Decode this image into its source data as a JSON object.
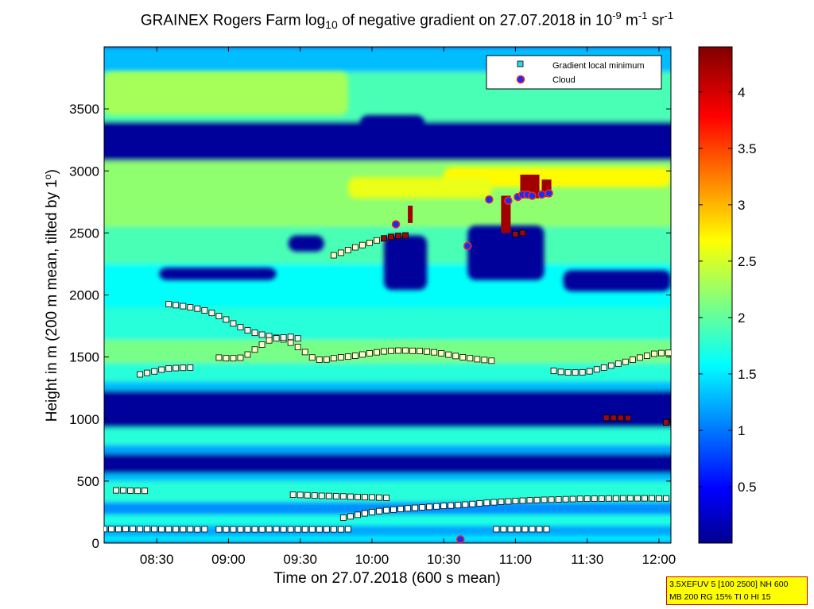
{
  "title": {
    "prefix": "GRAINEX Rogers Farm log",
    "sub": "10",
    "mid": " of negative gradient on 27.07.2018 in 10",
    "sup1": "-9",
    "mid2": " m",
    "sup2": "-1",
    "mid3": " sr",
    "sup3": "-1"
  },
  "xlabel": "Time on 27.07.2018 (600 s mean)",
  "ylabel": {
    "main": "Height in m (200 m mean, tilted by 1",
    "sup": "o",
    "end": ")"
  },
  "info_box": {
    "line1": "3.5XEFUV 5 [100 2500] NH 600",
    "line2": "MB 200 RG 15% TI 0 HI 15"
  },
  "legend": [
    {
      "label": "Gradient local minimum",
      "marker": "square",
      "color": "#29d6e8"
    },
    {
      "label": "Cloud",
      "marker": "circle",
      "color": "#1030ff",
      "edge": "#ff2020"
    }
  ],
  "chart_data": {
    "type": "heatmap",
    "x_unit": "minutes since 00:00",
    "xlim": [
      488,
      725
    ],
    "ylim": [
      0,
      4000
    ],
    "xticks": [
      {
        "value": 510,
        "label": "08:30"
      },
      {
        "value": 540,
        "label": "09:00"
      },
      {
        "value": 570,
        "label": "09:30"
      },
      {
        "value": 600,
        "label": "10:00"
      },
      {
        "value": 630,
        "label": "10:30"
      },
      {
        "value": 660,
        "label": "11:00"
      },
      {
        "value": 690,
        "label": "11:30"
      },
      {
        "value": 720,
        "label": "12:00"
      }
    ],
    "yticks": [
      0,
      500,
      1000,
      1500,
      2000,
      2500,
      3000,
      3500
    ],
    "colorbar": {
      "range": [
        0,
        4.4
      ],
      "ticks": [
        0.5,
        1,
        1.5,
        2,
        2.5,
        3,
        3.5,
        4
      ],
      "colormap": "jet"
    },
    "bands": [
      {
        "y0": 0,
        "y1": 60,
        "value": 1.5
      },
      {
        "y0": 60,
        "y1": 140,
        "value": 1.2
      },
      {
        "y0": 140,
        "y1": 230,
        "value": 1.7
      },
      {
        "y0": 230,
        "y1": 330,
        "value": 1.1
      },
      {
        "y0": 330,
        "y1": 500,
        "value": 1.75
      },
      {
        "y0": 500,
        "y1": 560,
        "value": 1.3
      },
      {
        "y0": 560,
        "y1": 720,
        "value": 0.05
      },
      {
        "y0": 720,
        "y1": 790,
        "value": 1.2
      },
      {
        "y0": 790,
        "y1": 930,
        "value": 1.75
      },
      {
        "y0": 930,
        "y1": 1230,
        "value": 0.05
      },
      {
        "y0": 1230,
        "y1": 1300,
        "value": 1.3
      },
      {
        "y0": 1300,
        "y1": 1450,
        "value": 1.75
      },
      {
        "y0": 1450,
        "y1": 1640,
        "value": 2.1
      },
      {
        "y0": 1640,
        "y1": 1900,
        "value": 1.75
      },
      {
        "y0": 1900,
        "y1": 2250,
        "value": 1.6
      },
      {
        "y0": 2250,
        "y1": 2550,
        "value": 1.9
      },
      {
        "y0": 2550,
        "y1": 2800,
        "value": 2.2
      },
      {
        "y0": 2800,
        "y1": 3080,
        "value": 2.2
      },
      {
        "y0": 3080,
        "y1": 3400,
        "value": 0.05
      },
      {
        "y0": 3400,
        "y1": 3800,
        "value": 1.9
      },
      {
        "y0": 3800,
        "y1": 4000,
        "value": 1.3
      }
    ],
    "patches": [
      {
        "x0": 630,
        "x1": 725,
        "y0": 2870,
        "y1": 3030,
        "value": 2.7
      },
      {
        "x0": 590,
        "x1": 650,
        "y0": 2780,
        "y1": 2950,
        "value": 2.6
      },
      {
        "x0": 488,
        "x1": 590,
        "y0": 3450,
        "y1": 3800,
        "value": 2.3
      },
      {
        "x0": 511,
        "x1": 560,
        "y0": 2120,
        "y1": 2220,
        "value": 0.05
      },
      {
        "x0": 565,
        "x1": 580,
        "y0": 2350,
        "y1": 2480,
        "value": 0.05
      },
      {
        "x0": 605,
        "x1": 623,
        "y0": 2040,
        "y1": 2480,
        "value": 0.05
      },
      {
        "x0": 640,
        "x1": 672,
        "y0": 2120,
        "y1": 2560,
        "value": 0.05
      },
      {
        "x0": 680,
        "x1": 725,
        "y0": 2030,
        "y1": 2200,
        "value": 0.05
      },
      {
        "x0": 595,
        "x1": 622,
        "y0": 3150,
        "y1": 3450,
        "value": 0.05
      }
    ],
    "cloud_spikes": [
      {
        "x0": 654,
        "x1": 658,
        "y0": 2500,
        "y1": 2800
      },
      {
        "x0": 662,
        "x1": 670,
        "y0": 2780,
        "y1": 2970
      },
      {
        "x0": 671,
        "x1": 675,
        "y0": 2790,
        "y1": 2930
      },
      {
        "x0": 615,
        "x1": 617,
        "y0": 2580,
        "y1": 2720
      }
    ],
    "series": [
      {
        "name": "Gradient local minimum",
        "points": [
          [
            488,
            113
          ],
          [
            491,
            113
          ],
          [
            494,
            113
          ],
          [
            497,
            114
          ],
          [
            500,
            114
          ],
          [
            503,
            113
          ],
          [
            506,
            113
          ],
          [
            509,
            113
          ],
          [
            512,
            112
          ],
          [
            515,
            112
          ],
          [
            518,
            112
          ],
          [
            521,
            112
          ],
          [
            524,
            112
          ],
          [
            527,
            111
          ],
          [
            530,
            112
          ],
          [
            536,
            111
          ],
          [
            539,
            111
          ],
          [
            542,
            111
          ],
          [
            545,
            111
          ],
          [
            548,
            111
          ],
          [
            551,
            111
          ],
          [
            554,
            111
          ],
          [
            557,
            112
          ],
          [
            560,
            112
          ],
          [
            563,
            111
          ],
          [
            566,
            111
          ],
          [
            569,
            111
          ],
          [
            572,
            111
          ],
          [
            575,
            111
          ],
          [
            578,
            111
          ],
          [
            581,
            111
          ],
          [
            584,
            111
          ],
          [
            587,
            111
          ],
          [
            590,
            112
          ],
          [
            652,
            112
          ],
          [
            655,
            112
          ],
          [
            658,
            112
          ],
          [
            661,
            112
          ],
          [
            664,
            112
          ],
          [
            667,
            112
          ],
          [
            670,
            112
          ],
          [
            673,
            112
          ],
          [
            493,
            425
          ],
          [
            496,
            425
          ],
          [
            499,
            423
          ],
          [
            502,
            421
          ],
          [
            505,
            421
          ],
          [
            567,
            390
          ],
          [
            570,
            388
          ],
          [
            573,
            386
          ],
          [
            576,
            383
          ],
          [
            579,
            381
          ],
          [
            582,
            380
          ],
          [
            585,
            378
          ],
          [
            588,
            376
          ],
          [
            591,
            374
          ],
          [
            594,
            372
          ],
          [
            597,
            370
          ],
          [
            600,
            369
          ],
          [
            603,
            367
          ],
          [
            606,
            365
          ],
          [
            588,
            205
          ],
          [
            591,
            215
          ],
          [
            594,
            228
          ],
          [
            597,
            240
          ],
          [
            600,
            250
          ],
          [
            603,
            258
          ],
          [
            606,
            265
          ],
          [
            609,
            270
          ],
          [
            612,
            275
          ],
          [
            615,
            280
          ],
          [
            618,
            284
          ],
          [
            621,
            288
          ],
          [
            624,
            292
          ],
          [
            627,
            296
          ],
          [
            630,
            300
          ],
          [
            633,
            303
          ],
          [
            636,
            306
          ],
          [
            639,
            310
          ],
          [
            642,
            315
          ],
          [
            645,
            320
          ],
          [
            648,
            325
          ],
          [
            651,
            329
          ],
          [
            654,
            333
          ],
          [
            657,
            336
          ],
          [
            660,
            339
          ],
          [
            663,
            342
          ],
          [
            666,
            345
          ],
          [
            669,
            347
          ],
          [
            672,
            349
          ],
          [
            675,
            350
          ],
          [
            678,
            352
          ],
          [
            681,
            354
          ],
          [
            684,
            355
          ],
          [
            687,
            357
          ],
          [
            690,
            358
          ],
          [
            693,
            358
          ],
          [
            696,
            359
          ],
          [
            699,
            360
          ],
          [
            702,
            360
          ],
          [
            705,
            361
          ],
          [
            708,
            361
          ],
          [
            711,
            361
          ],
          [
            714,
            361
          ],
          [
            717,
            361
          ],
          [
            720,
            360
          ],
          [
            723,
            360
          ],
          [
            698,
            1010
          ],
          [
            701,
            1009
          ],
          [
            704,
            1009
          ],
          [
            707,
            1008
          ],
          [
            723,
            972
          ],
          [
            726,
            972
          ],
          [
            503,
            1360
          ],
          [
            506,
            1372
          ],
          [
            509,
            1384
          ],
          [
            512,
            1398
          ],
          [
            515,
            1407
          ],
          [
            518,
            1411
          ],
          [
            521,
            1413
          ],
          [
            524,
            1415
          ],
          [
            515,
            1926
          ],
          [
            518,
            1918
          ],
          [
            521,
            1910
          ],
          [
            524,
            1900
          ],
          [
            527,
            1890
          ],
          [
            530,
            1875
          ],
          [
            533,
            1855
          ],
          [
            536,
            1830
          ],
          [
            539,
            1802
          ],
          [
            542,
            1770
          ],
          [
            545,
            1740
          ],
          [
            548,
            1715
          ],
          [
            551,
            1695
          ],
          [
            554,
            1680
          ],
          [
            557,
            1668
          ],
          [
            560,
            1655
          ],
          [
            563,
            1642
          ],
          [
            566,
            1615
          ],
          [
            569,
            1580
          ],
          [
            572,
            1540
          ],
          [
            575,
            1496
          ],
          [
            536,
            1495
          ],
          [
            539,
            1490
          ],
          [
            542,
            1490
          ],
          [
            545,
            1494
          ],
          [
            548,
            1520
          ],
          [
            551,
            1560
          ],
          [
            554,
            1600
          ],
          [
            557,
            1634
          ],
          [
            560,
            1650
          ],
          [
            563,
            1658
          ],
          [
            566,
            1662
          ],
          [
            569,
            1650
          ],
          [
            578,
            1478
          ],
          [
            581,
            1480
          ],
          [
            584,
            1490
          ],
          [
            587,
            1498
          ],
          [
            590,
            1503
          ],
          [
            593,
            1510
          ],
          [
            596,
            1520
          ],
          [
            599,
            1530
          ],
          [
            602,
            1538
          ],
          [
            605,
            1545
          ],
          [
            608,
            1550
          ],
          [
            611,
            1552
          ],
          [
            614,
            1552
          ],
          [
            617,
            1550
          ],
          [
            620,
            1548
          ],
          [
            623,
            1544
          ],
          [
            626,
            1538
          ],
          [
            629,
            1530
          ],
          [
            632,
            1519
          ],
          [
            635,
            1508
          ],
          [
            638,
            1498
          ],
          [
            641,
            1490
          ],
          [
            644,
            1482
          ],
          [
            647,
            1476
          ],
          [
            650,
            1470
          ],
          [
            676,
            1388
          ],
          [
            679,
            1380
          ],
          [
            682,
            1375
          ],
          [
            685,
            1375
          ],
          [
            688,
            1377
          ],
          [
            691,
            1385
          ],
          [
            694,
            1400
          ],
          [
            697,
            1415
          ],
          [
            700,
            1430
          ],
          [
            703,
            1446
          ],
          [
            706,
            1461
          ],
          [
            709,
            1478
          ],
          [
            712,
            1495
          ],
          [
            715,
            1510
          ],
          [
            718,
            1526
          ],
          [
            721,
            1532
          ],
          [
            724,
            1534
          ],
          [
            584,
            2320
          ],
          [
            587,
            2340
          ],
          [
            590,
            2362
          ],
          [
            593,
            2384
          ],
          [
            596,
            2402
          ],
          [
            599,
            2420
          ],
          [
            602,
            2440
          ],
          [
            605,
            2456
          ],
          [
            608,
            2468
          ],
          [
            611,
            2476
          ],
          [
            614,
            2480
          ],
          [
            660,
            2490
          ],
          [
            663,
            2500
          ]
        ],
        "marker": "square"
      },
      {
        "name": "Cloud",
        "points": [
          [
            610,
            2570
          ],
          [
            640,
            2395
          ],
          [
            649,
            2770
          ],
          [
            657,
            2760
          ],
          [
            661,
            2790
          ],
          [
            663,
            2810
          ],
          [
            665,
            2810
          ],
          [
            667,
            2800
          ],
          [
            671,
            2810
          ],
          [
            674,
            2820
          ],
          [
            637,
            30
          ]
        ],
        "marker": "circle"
      }
    ]
  }
}
